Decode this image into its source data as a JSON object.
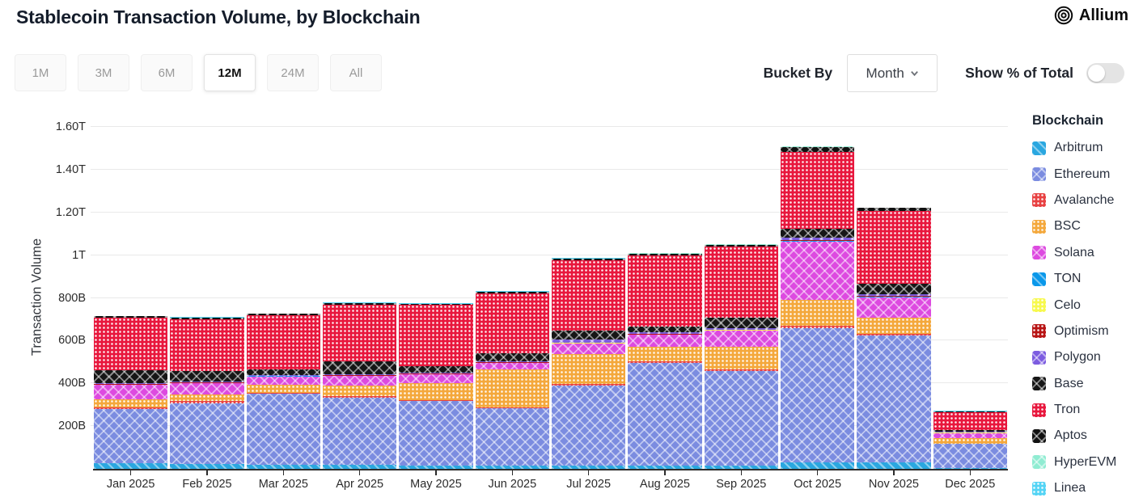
{
  "header": {
    "title": "Stablecoin Transaction Volume, by Blockchain",
    "brand": "Allium"
  },
  "controls": {
    "time_ranges": [
      "1M",
      "3M",
      "6M",
      "12M",
      "24M",
      "All"
    ],
    "selected_range": "12M",
    "bucket_by_label": "Bucket By",
    "bucket_value": "Month",
    "show_pct_label": "Show % of Total",
    "show_pct_toggle": "off"
  },
  "chart_data": {
    "type": "bar",
    "stacked": true,
    "title": "Stablecoin Transaction Volume, by Blockchain",
    "ylabel": "Transaction Volume",
    "xlabel": "",
    "legend_title": "Blockchain",
    "legend_position": "right",
    "grid": true,
    "values_in": "billions",
    "ylim_billions": [
      0,
      1600
    ],
    "y_ticks": [
      {
        "label": "1.60T",
        "value": 1600
      },
      {
        "label": "1.40T",
        "value": 1400
      },
      {
        "label": "1.20T",
        "value": 1200
      },
      {
        "label": "1T",
        "value": 1000
      },
      {
        "label": "800B",
        "value": 800
      },
      {
        "label": "600B",
        "value": 600
      },
      {
        "label": "400B",
        "value": 400
      },
      {
        "label": "200B",
        "value": 200
      }
    ],
    "categories": [
      "Jan 2025",
      "Feb 2025",
      "Mar 2025",
      "Apr 2025",
      "May 2025",
      "Jun 2025",
      "Jul 2025",
      "Aug 2025",
      "Sep 2025",
      "Oct 2025",
      "Nov 2025",
      "Dec 2025"
    ],
    "series": [
      {
        "name": "Arbitrum",
        "color": "#2aa7e0",
        "pattern": "diag",
        "values": [
          25,
          23,
          20,
          18,
          17,
          16,
          16,
          16,
          16,
          30,
          30,
          4
        ]
      },
      {
        "name": "Ethereum",
        "color": "#7b8ce0",
        "pattern": "cross",
        "values": [
          255,
          285,
          330,
          315,
          300,
          268,
          372,
          478,
          440,
          628,
          595,
          112
        ]
      },
      {
        "name": "Avalanche",
        "color": "#e84142",
        "pattern": "dots",
        "values": [
          9,
          8,
          6,
          8,
          6,
          5,
          10,
          8,
          10,
          11,
          8,
          3
        ]
      },
      {
        "name": "BSC",
        "color": "#f4a83c",
        "pattern": "dots",
        "values": [
          35,
          31,
          38,
          48,
          80,
          175,
          140,
          70,
          105,
          120,
          75,
          24
        ]
      },
      {
        "name": "Solana",
        "color": "#dd4ae0",
        "pattern": "cross",
        "values": [
          68,
          53,
          38,
          45,
          38,
          30,
          48,
          55,
          75,
          275,
          95,
          24
        ]
      },
      {
        "name": "TON",
        "color": "#0a98ea",
        "pattern": "diag",
        "values": [
          2,
          2,
          2,
          2,
          2,
          2,
          2,
          2,
          2,
          3,
          3,
          1
        ]
      },
      {
        "name": "Celo",
        "color": "#f7f94d",
        "pattern": "dots",
        "values": [
          1,
          1,
          1,
          1,
          1,
          1,
          1,
          1,
          1,
          1,
          1,
          1
        ]
      },
      {
        "name": "Optimism",
        "color": "#b81414",
        "pattern": "dots",
        "values": [
          2,
          2,
          2,
          2,
          2,
          2,
          3,
          3,
          3,
          3,
          3,
          1
        ]
      },
      {
        "name": "Polygon",
        "color": "#7c5ce0",
        "pattern": "cross",
        "values": [
          5,
          4,
          3,
          4,
          3,
          3,
          12,
          5,
          5,
          11,
          6,
          3
        ]
      },
      {
        "name": "Base",
        "color": "#161616",
        "pattern": "cross",
        "values": [
          60,
          48,
          25,
          62,
          30,
          38,
          44,
          30,
          50,
          40,
          50,
          8
        ]
      },
      {
        "name": "Tron",
        "color": "#e8173d",
        "pattern": "dots",
        "values": [
          245,
          245,
          255,
          265,
          288,
          283,
          328,
          332,
          335,
          362,
          340,
          86
        ]
      },
      {
        "name": "Aptos",
        "color": "#111111",
        "pattern": "cross",
        "values": [
          7,
          6,
          5,
          6,
          6,
          6,
          8,
          8,
          8,
          22,
          15,
          3
        ]
      },
      {
        "name": "HyperEVM",
        "color": "#90ecd2",
        "pattern": "cross",
        "values": [
          1,
          1,
          1,
          1,
          1,
          1,
          1,
          1,
          1,
          2,
          1,
          1
        ]
      },
      {
        "name": "Linea",
        "color": "#54d4f5",
        "pattern": "dots",
        "values": [
          1,
          1,
          1,
          1,
          1,
          1,
          1,
          1,
          1,
          2,
          2,
          1
        ]
      }
    ]
  }
}
